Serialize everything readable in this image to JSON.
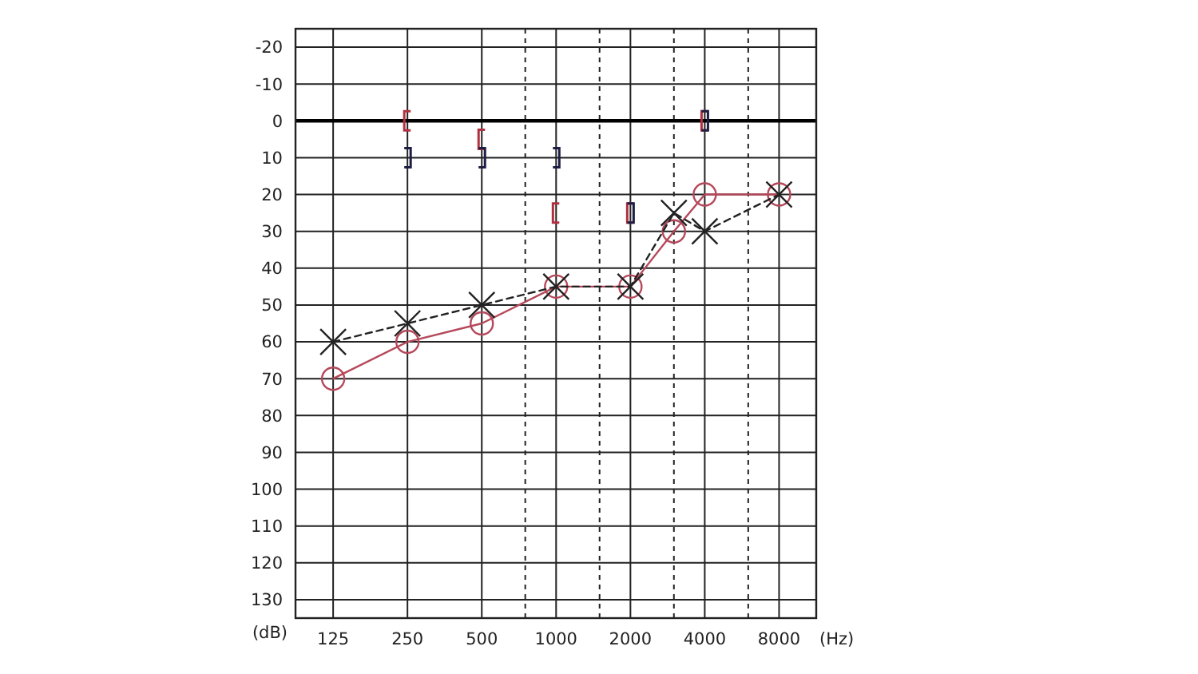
{
  "chart_data": {
    "type": "line",
    "xlabel": "(Hz)",
    "ylabel": "(dB)",
    "log": "x",
    "grid": true,
    "xlim": [
      88,
      11314
    ],
    "xticks": [
      125,
      250,
      500,
      {
        "value": 750,
        "label": null
      },
      1000,
      {
        "value": 1500,
        "label": null
      },
      2000,
      {
        "value": 3000,
        "label": null
      },
      4000,
      {
        "value": 6000,
        "label": null
      },
      8000
    ],
    "ylim": [
      135,
      -25
    ],
    "yticks": [
      -20,
      -10,
      0,
      10,
      20,
      30,
      40,
      50,
      60,
      70,
      80,
      90,
      100,
      110,
      120,
      130
    ],
    "ref_lines": [
      {
        "axis": "y",
        "value": 0,
        "color": "#000000"
      }
    ],
    "series": [
      {
        "color": "#b5485a",
        "marker": "circle",
        "line_style": "solid",
        "x": [
          125,
          250,
          500,
          1000,
          2000,
          3000,
          4000,
          8000
        ],
        "values": [
          70,
          60,
          55,
          45,
          45,
          30,
          20,
          20
        ]
      },
      {
        "color": "#222222",
        "marker": "cross",
        "line_style": "dashed",
        "x": [
          125,
          250,
          500,
          1000,
          2000,
          3000,
          4000,
          8000
        ],
        "values": [
          60,
          55,
          50,
          45,
          45,
          25,
          30,
          20
        ]
      },
      {
        "type": "scatter",
        "color": "#b03040",
        "x": [
          250,
          500,
          1000,
          2000,
          4000
        ],
        "values": [
          0,
          5,
          25,
          25,
          0
        ]
      },
      {
        "type": "scatter",
        "color": "#1e1e44",
        "x": [
          250,
          500,
          1000,
          2000,
          4000
        ],
        "values": [
          10,
          10,
          10,
          25,
          0
        ]
      }
    ]
  }
}
